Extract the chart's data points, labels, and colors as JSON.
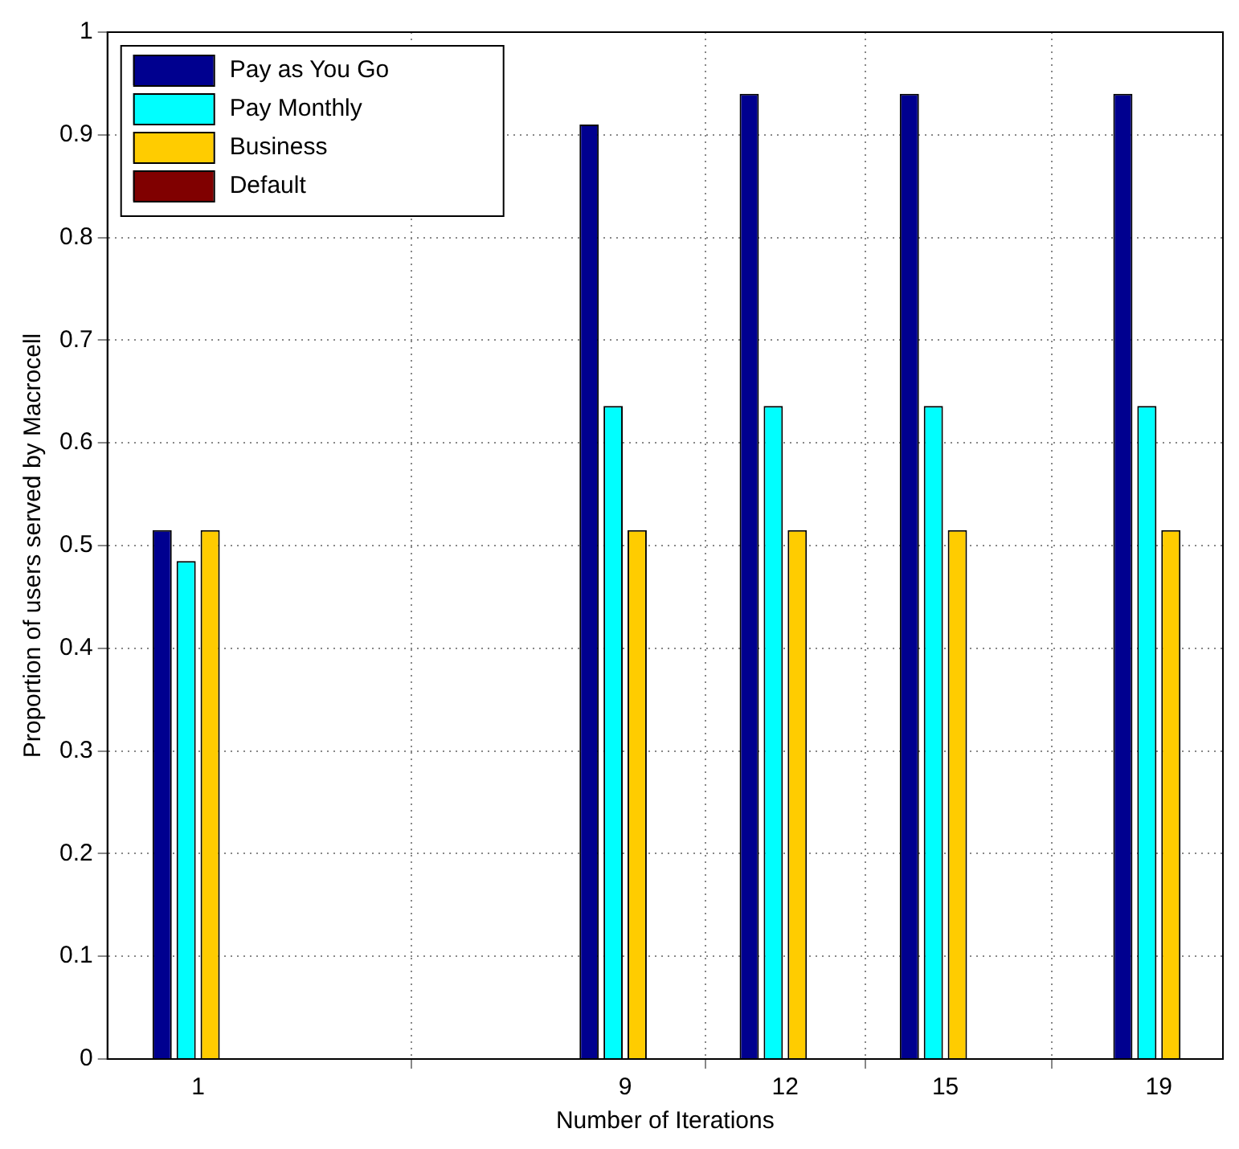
{
  "chart_data": {
    "type": "bar",
    "xlabel": "Number of Iterations",
    "ylabel": "Proportion of users served by Macrocell",
    "x": [
      1,
      9,
      12,
      15,
      19
    ],
    "series": [
      {
        "name": "Pay as You Go",
        "color": "#00008f",
        "values": [
          0.515,
          0.91,
          0.94,
          0.94,
          0.94
        ]
      },
      {
        "name": "Pay Monthly",
        "color": "#00ffff",
        "values": [
          0.485,
          0.636,
          0.636,
          0.636,
          0.636
        ]
      },
      {
        "name": "Business",
        "color": "#ffcc00",
        "values": [
          0.515,
          0.515,
          0.515,
          0.515,
          0.515
        ]
      },
      {
        "name": "Default",
        "color": "#800000",
        "values": [
          0,
          0,
          0,
          0,
          0
        ]
      }
    ],
    "xlim": [
      -0.7,
      20.2
    ],
    "xticks": [
      1,
      9,
      12,
      15,
      19
    ],
    "ylim": [
      0,
      1
    ],
    "yticks": [
      0,
      0.1,
      0.2,
      0.3,
      0.4,
      0.5,
      0.6,
      0.7,
      0.8,
      0.9,
      1
    ],
    "grid": true,
    "legend": "top left"
  }
}
